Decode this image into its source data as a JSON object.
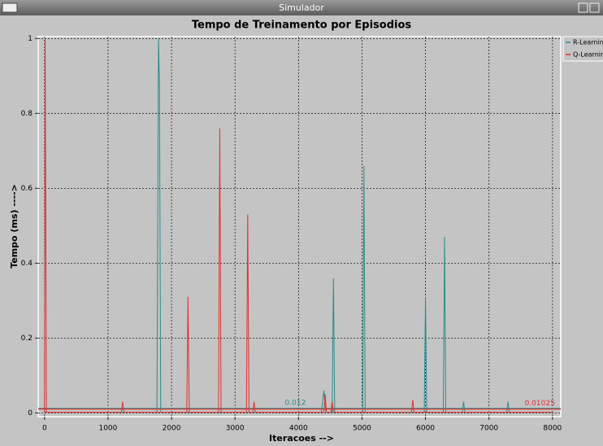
{
  "window_title": "Simulador",
  "chart_data": {
    "type": "line",
    "title": "Tempo de Treinamento por Episodios",
    "x_label": "Iteracoes -->",
    "y_label": "Tempo (ms) ---->",
    "xlim": [
      -100,
      8130
    ],
    "ylim": [
      -0.01,
      1.005
    ],
    "xticks": [
      0,
      1000,
      2000,
      3000,
      4000,
      5000,
      6000,
      7000,
      8000
    ],
    "yticks": [
      0,
      0.2,
      0.4,
      0.6,
      0.8,
      1
    ],
    "grid": true,
    "legend": "right",
    "series": [
      {
        "name": "R-Learning",
        "color": "#2a8c8c",
        "mean": 0.012,
        "x": [
          0,
          1770,
          1795,
          1810,
          1830,
          4360,
          4400,
          4430,
          4530,
          4550,
          4570,
          5010,
          5030,
          5050,
          5980,
          6000,
          6020,
          6280,
          6300,
          6320,
          6580,
          6600,
          6620,
          7280,
          7300,
          7320,
          8000
        ],
        "values": [
          0.002,
          0.002,
          1.0,
          0.87,
          0.002,
          0.002,
          0.06,
          0.002,
          0.002,
          0.36,
          0.002,
          0.002,
          0.66,
          0.002,
          0.002,
          0.31,
          0.002,
          0.002,
          0.47,
          0.002,
          0.002,
          0.03,
          0.002,
          0.002,
          0.03,
          0.002,
          0.002
        ]
      },
      {
        "name": "Q-Learning",
        "color": "#e03030",
        "mean": 0.01025,
        "x": [
          0,
          10,
          30,
          1210,
          1230,
          1250,
          2240,
          2260,
          2280,
          2740,
          2760,
          2780,
          3180,
          3200,
          3220,
          3280,
          3300,
          3320,
          4400,
          4420,
          4440,
          4510,
          4530,
          4550,
          5780,
          5800,
          5820,
          8000
        ],
        "values": [
          0.002,
          1.0,
          0.002,
          0.002,
          0.03,
          0.002,
          0.002,
          0.31,
          0.002,
          0.002,
          0.76,
          0.002,
          0.002,
          0.53,
          0.002,
          0.002,
          0.03,
          0.002,
          0.002,
          0.05,
          0.002,
          0.002,
          0.03,
          0.002,
          0.002,
          0.035,
          0.002,
          0.002
        ]
      }
    ]
  }
}
